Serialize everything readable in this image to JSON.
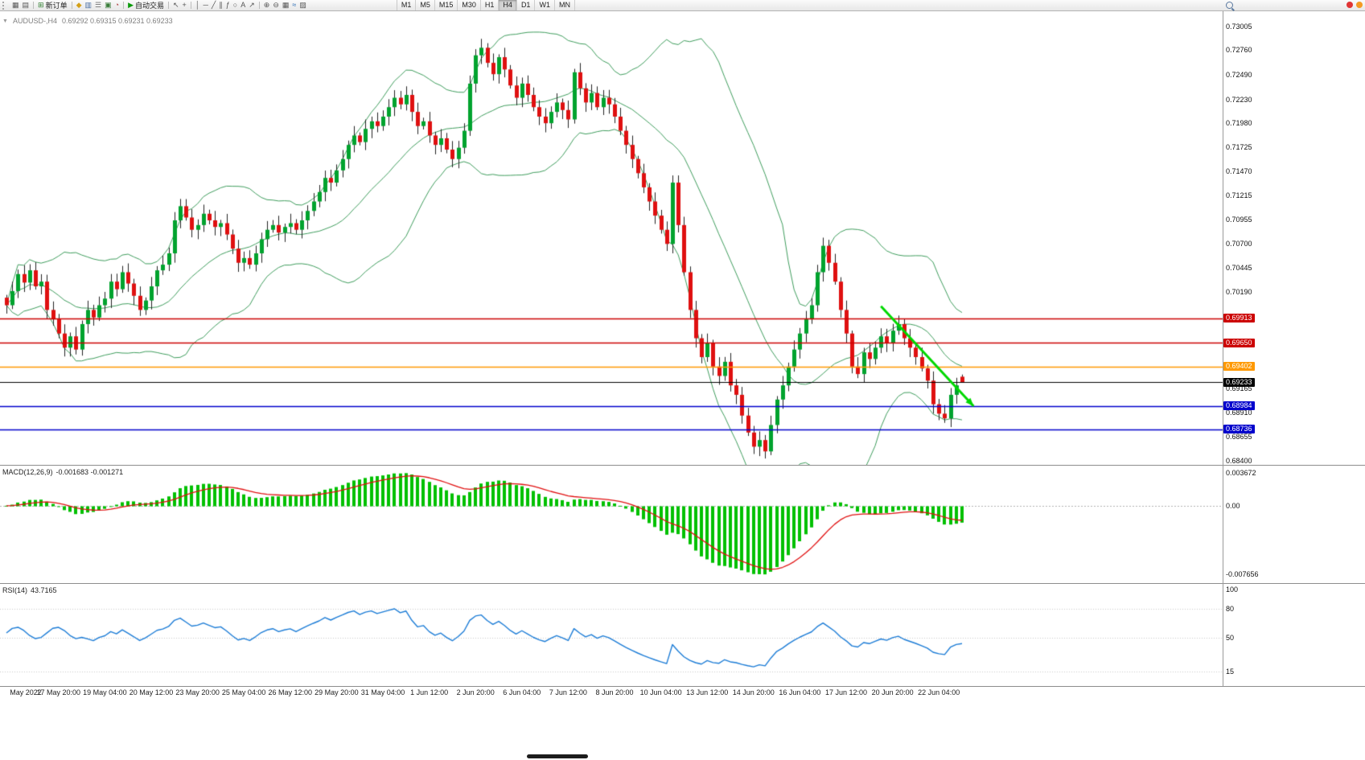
{
  "icons": {
    "chart_menu": "▼"
  },
  "toolbar": {
    "groups": [
      {
        "items": [
          {
            "name": "new-chart",
            "glyph": "▦"
          },
          {
            "name": "chart-profiles",
            "glyph": "▤"
          }
        ]
      },
      {
        "items": [
          {
            "name": "new-order",
            "glyph": "⊞",
            "glyph_color": "#2f7d2f",
            "label": "新订单"
          }
        ]
      },
      {
        "items": [
          {
            "name": "market-watch",
            "glyph": "◆",
            "glyph_color": "#d4a017"
          },
          {
            "name": "data-window",
            "glyph": "▥",
            "glyph_color": "#4a6fa5"
          },
          {
            "name": "navigator",
            "glyph": "☰",
            "glyph_color": "#777777"
          },
          {
            "name": "terminal",
            "glyph": "▣",
            "glyph_color": "#3a7d3a"
          },
          {
            "name": "strategy-tester",
            "glyph": "◔",
            "glyph_color": "#b04040"
          }
        ]
      },
      {
        "items": [
          {
            "name": "auto-trading",
            "glyph": "▶",
            "glyph_color": "#0a9a0a",
            "label": "自动交易"
          }
        ]
      },
      {
        "items": [
          {
            "name": "cursor-tool",
            "glyph": "↖"
          },
          {
            "name": "crosshair-tool",
            "glyph": "+"
          }
        ]
      },
      {
        "items": [
          {
            "name": "vertical-line-tool",
            "glyph": "│"
          },
          {
            "name": "horizontal-line-tool",
            "glyph": "─"
          },
          {
            "name": "trendline-tool",
            "glyph": "╱"
          },
          {
            "name": "channel-tool",
            "glyph": "∥"
          },
          {
            "name": "fibonacci-tool",
            "glyph": "ƒ"
          },
          {
            "name": "ellipse-tool",
            "glyph": "○"
          },
          {
            "name": "text-tool",
            "glyph": "A"
          },
          {
            "name": "arrow-tool",
            "glyph": "↗"
          }
        ]
      },
      {
        "items": [
          {
            "name": "zoom-in",
            "glyph": "⊕"
          },
          {
            "name": "zoom-out",
            "glyph": "⊖"
          },
          {
            "name": "tile-windows",
            "glyph": "▦"
          },
          {
            "name": "indicators-list",
            "glyph": "≈",
            "glyph_color": "#2a6db5"
          },
          {
            "name": "template",
            "glyph": "▨"
          }
        ]
      }
    ],
    "timeframes": [
      "M1",
      "M5",
      "M15",
      "M30",
      "H1",
      "H4",
      "D1",
      "W1",
      "MN"
    ],
    "active_timeframe": "H4"
  },
  "chart": {
    "symbol_period": "AUDUSD-,H4",
    "ohlc_text": "0.69292 0.69315 0.69231 0.69233"
  },
  "chart_data": {
    "type": "candlestick",
    "symbol": "AUDUSD-",
    "period": "H4",
    "current_bar": {
      "open": 0.69292,
      "high": 0.69315,
      "low": 0.69231,
      "close": 0.69233
    },
    "price_axis_labels": [
      "0.73005",
      "0.72760",
      "0.72490",
      "0.72230",
      "0.71980",
      "0.71725",
      "0.71470",
      "0.71215",
      "0.70955",
      "0.70700",
      "0.70445",
      "0.70190",
      "0.69165",
      "0.68910",
      "0.68655",
      "0.68400"
    ],
    "horizontal_lines": [
      {
        "price": 0.69913,
        "label": "0.69913",
        "color": "#CC0000",
        "type": "resistance"
      },
      {
        "price": 0.6965,
        "label": "0.69650",
        "color": "#CC0000",
        "type": "resistance"
      },
      {
        "price": 0.69402,
        "label": "0.69402",
        "color": "#FF9900",
        "type": "level"
      },
      {
        "price": 0.69233,
        "label": "0.69233",
        "color": "#000000",
        "type": "current-price"
      },
      {
        "price": 0.68984,
        "label": "0.68984",
        "color": "#0000CC",
        "type": "support"
      },
      {
        "price": 0.68736,
        "label": "0.68736",
        "color": "#0000CC",
        "type": "support"
      }
    ],
    "closes": [
      0.7005,
      0.702,
      0.7038,
      0.7029,
      0.7042,
      0.7025,
      0.703,
      0.7,
      0.699,
      0.6975,
      0.696,
      0.6972,
      0.6958,
      0.6985,
      0.7,
      0.6992,
      0.7005,
      0.7012,
      0.703,
      0.7022,
      0.704,
      0.7028,
      0.7015,
      0.7,
      0.701,
      0.7025,
      0.7042,
      0.7048,
      0.706,
      0.7095,
      0.711,
      0.7098,
      0.7085,
      0.709,
      0.7102,
      0.7095,
      0.7088,
      0.7092,
      0.708,
      0.7065,
      0.705,
      0.7055,
      0.7048,
      0.706,
      0.7075,
      0.7085,
      0.709,
      0.7082,
      0.7088,
      0.7092,
      0.7085,
      0.7095,
      0.7105,
      0.7115,
      0.7125,
      0.714,
      0.7135,
      0.7148,
      0.716,
      0.7175,
      0.7185,
      0.7178,
      0.7192,
      0.72,
      0.7195,
      0.7205,
      0.7215,
      0.7225,
      0.7218,
      0.7228,
      0.721,
      0.7195,
      0.72,
      0.7185,
      0.7175,
      0.7182,
      0.717,
      0.716,
      0.7172,
      0.719,
      0.724,
      0.727,
      0.7278,
      0.7262,
      0.725,
      0.7268,
      0.7255,
      0.7238,
      0.7225,
      0.724,
      0.7228,
      0.7215,
      0.7205,
      0.7198,
      0.721,
      0.722,
      0.7212,
      0.7202,
      0.7252,
      0.7235,
      0.722,
      0.723,
      0.7215,
      0.7225,
      0.7218,
      0.7205,
      0.719,
      0.7175,
      0.716,
      0.7145,
      0.713,
      0.7115,
      0.71,
      0.7085,
      0.707,
      0.7135,
      0.709,
      0.704,
      0.7,
      0.697,
      0.695,
      0.6965,
      0.694,
      0.693,
      0.6945,
      0.692,
      0.691,
      0.6888,
      0.687,
      0.6855,
      0.6862,
      0.685,
      0.6878,
      0.6905,
      0.692,
      0.694,
      0.6958,
      0.6975,
      0.699,
      0.7005,
      0.704,
      0.7068,
      0.705,
      0.703,
      0.7,
      0.6975,
      0.694,
      0.6932,
      0.6955,
      0.6948,
      0.696,
      0.6972,
      0.6965,
      0.6978,
      0.6985,
      0.697,
      0.696,
      0.695,
      0.6938,
      0.6925,
      0.69,
      0.689,
      0.6885,
      0.691,
      0.692,
      0.69233
    ],
    "time_axis_labels": [
      {
        "text": "May 2022",
        "idx": 1
      },
      {
        "text": "17 May 20:00",
        "idx": 9
      },
      {
        "text": "19 May 04:00",
        "idx": 17
      },
      {
        "text": "20 May 12:00",
        "idx": 25
      },
      {
        "text": "23 May 20:00",
        "idx": 33
      },
      {
        "text": "25 May 04:00",
        "idx": 41
      },
      {
        "text": "26 May 12:00",
        "idx": 49
      },
      {
        "text": "29 May 20:00",
        "idx": 57
      },
      {
        "text": "31 May 04:00",
        "idx": 65
      },
      {
        "text": "1 Jun 12:00",
        "idx": 73
      },
      {
        "text": "2 Jun 20:00",
        "idx": 81
      },
      {
        "text": "6 Jun 04:00",
        "idx": 89
      },
      {
        "text": "7 Jun 12:00",
        "idx": 97
      },
      {
        "text": "8 Jun 20:00",
        "idx": 105
      },
      {
        "text": "10 Jun 04:00",
        "idx": 113
      },
      {
        "text": "13 Jun 12:00",
        "idx": 121
      },
      {
        "text": "14 Jun 20:00",
        "idx": 129
      },
      {
        "text": "16 Jun 04:00",
        "idx": 137
      },
      {
        "text": "17 Jun 12:00",
        "idx": 145
      },
      {
        "text": "20 Jun 20:00",
        "idx": 153
      },
      {
        "text": "22 Jun 04:00",
        "idx": 161
      }
    ],
    "bollinger_color": "#3E9C5C",
    "candle_colors": {
      "up": "#00A32E",
      "down": "#DF1010",
      "wick": "#222222"
    },
    "trend_arrow": {
      "from_idx": 151,
      "from_price": 0.7004,
      "to_idx": 167,
      "to_price": 0.6898,
      "color": "#00D800"
    },
    "macd": {
      "name": "MACD(12,26,9)",
      "values_text": "-0.001683 -0.001271",
      "axis_labels": [
        "0.003672",
        "0.00",
        "-0.007656"
      ],
      "axis_values": [
        0.003672,
        0,
        -0.007656
      ],
      "histogram_color": "#00C000",
      "signal_color": "#E01010"
    },
    "rsi": {
      "name": "RSI(14)",
      "value_text": "43.7165",
      "axis_labels": [
        "100",
        "80",
        "50",
        "15"
      ],
      "axis_values": [
        100,
        80,
        50,
        15
      ],
      "levels": [
        80,
        50,
        15
      ],
      "line_color": "#1C7CD6"
    }
  }
}
